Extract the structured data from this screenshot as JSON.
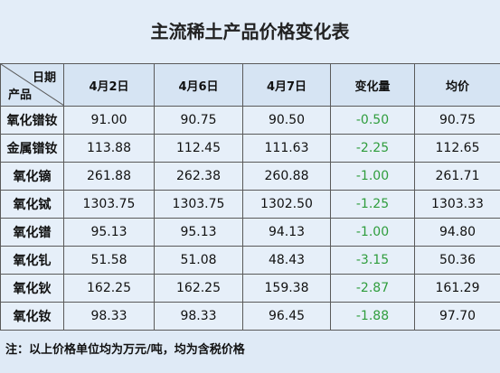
{
  "header": {
    "title": "主流稀土产品价格变化表"
  },
  "table": {
    "corner": {
      "top": "日期",
      "bottom": "产品"
    },
    "columns": [
      "4月2日",
      "4月6日",
      "4月7日",
      "变化量",
      "均价"
    ],
    "rows": [
      [
        "氧化镨钕",
        "91.00",
        "90.75",
        "90.50",
        "-0.50",
        "90.75"
      ],
      [
        "金属镨钕",
        "113.88",
        "112.45",
        "111.63",
        "-2.25",
        "112.65"
      ],
      [
        "氧化镝",
        "261.88",
        "262.38",
        "260.88",
        "-1.00",
        "261.71"
      ],
      [
        "氧化铽",
        "1303.75",
        "1303.75",
        "1302.50",
        "-1.25",
        "1303.33"
      ],
      [
        "氧化镨",
        "95.13",
        "95.13",
        "94.13",
        "-1.00",
        "94.80"
      ],
      [
        "氧化钆",
        "51.58",
        "51.08",
        "48.43",
        "-3.15",
        "50.36"
      ],
      [
        "氧化钬",
        "162.25",
        "162.25",
        "159.38",
        "-2.87",
        "161.29"
      ],
      [
        "氧化钕",
        "98.33",
        "98.33",
        "96.45",
        "-1.88",
        "97.70"
      ]
    ]
  },
  "footer": {
    "note": "注：以上价格单位均为万元/吨，均为含税价格"
  }
}
